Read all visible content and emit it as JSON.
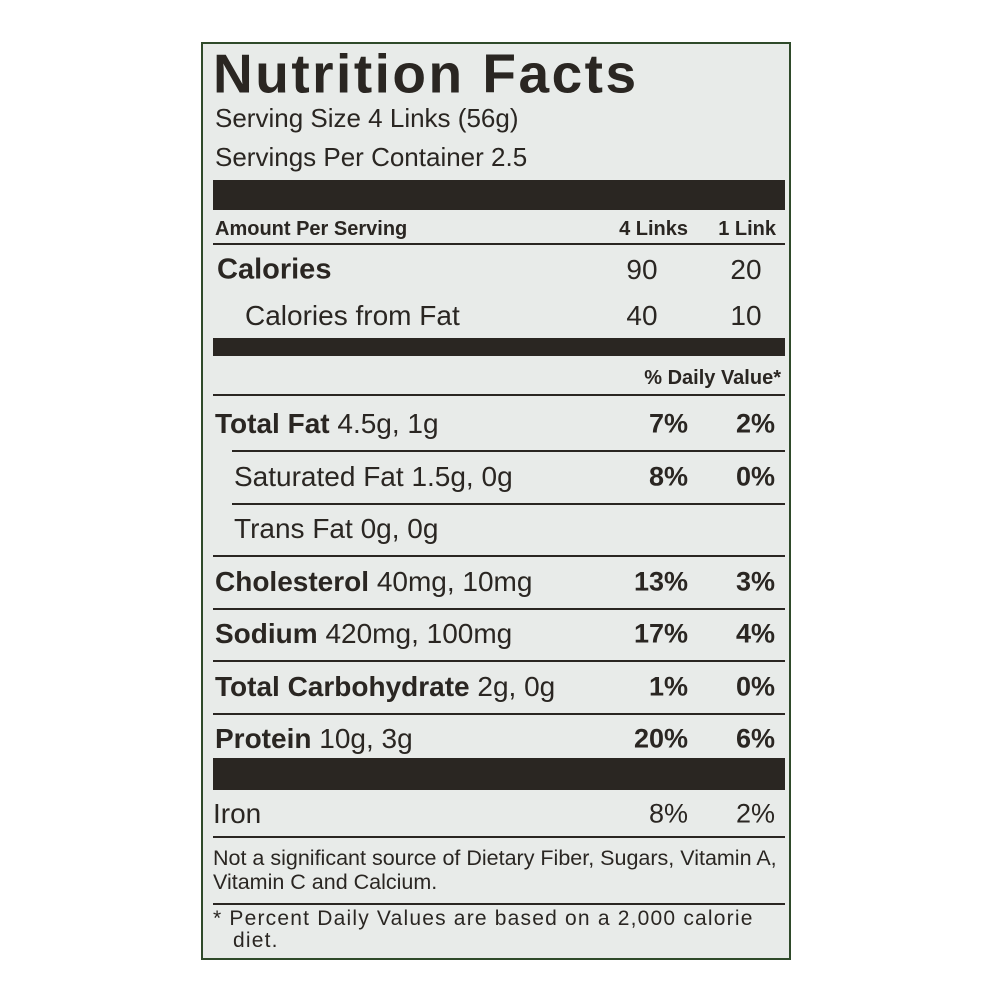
{
  "label": {
    "title": "Nutrition Facts",
    "serving_size": "Serving Size 4 Links (56g)",
    "servings_per_container": "Servings Per Container 2.5",
    "amount_header": {
      "label": "Amount Per Serving",
      "columns": [
        "4 Links",
        "1 Link"
      ]
    },
    "calories": {
      "name": "Calories",
      "values": [
        "90",
        "20"
      ]
    },
    "calories_from_fat": {
      "name": "Calories from Fat",
      "values": [
        "40",
        "10"
      ]
    },
    "daily_value_header": "% Daily Value*",
    "nutrients": [
      {
        "name": "Total Fat",
        "amount": "4.5g, 1g",
        "dv": [
          "7%",
          "2%"
        ]
      },
      {
        "name": "Saturated Fat",
        "amount": "1.5g, 0g",
        "dv": [
          "8%",
          "0%"
        ],
        "sub": true
      },
      {
        "name": "Trans Fat",
        "amount": "0g, 0g",
        "sub": true
      },
      {
        "name": "Cholesterol",
        "amount": "40mg, 10mg",
        "dv": [
          "13%",
          "3%"
        ]
      },
      {
        "name": "Sodium",
        "amount": "420mg, 100mg",
        "dv": [
          "17%",
          "4%"
        ]
      },
      {
        "name": "Total Carbohydrate",
        "amount": "2g, 0g",
        "dv": [
          "1%",
          "0%"
        ]
      },
      {
        "name": "Protein",
        "amount": "10g, 3g",
        "dv": [
          "20%",
          "6%"
        ]
      }
    ],
    "vitamins": [
      {
        "name": "Iron",
        "dv": [
          "8%",
          "2%"
        ]
      }
    ],
    "footnotes": [
      "Not a significant source of Dietary Fiber, Sugars, Vitamin A, Vitamin C and Calcium.",
      "* Percent Daily Values are based on a 2,000 calorie diet."
    ]
  }
}
